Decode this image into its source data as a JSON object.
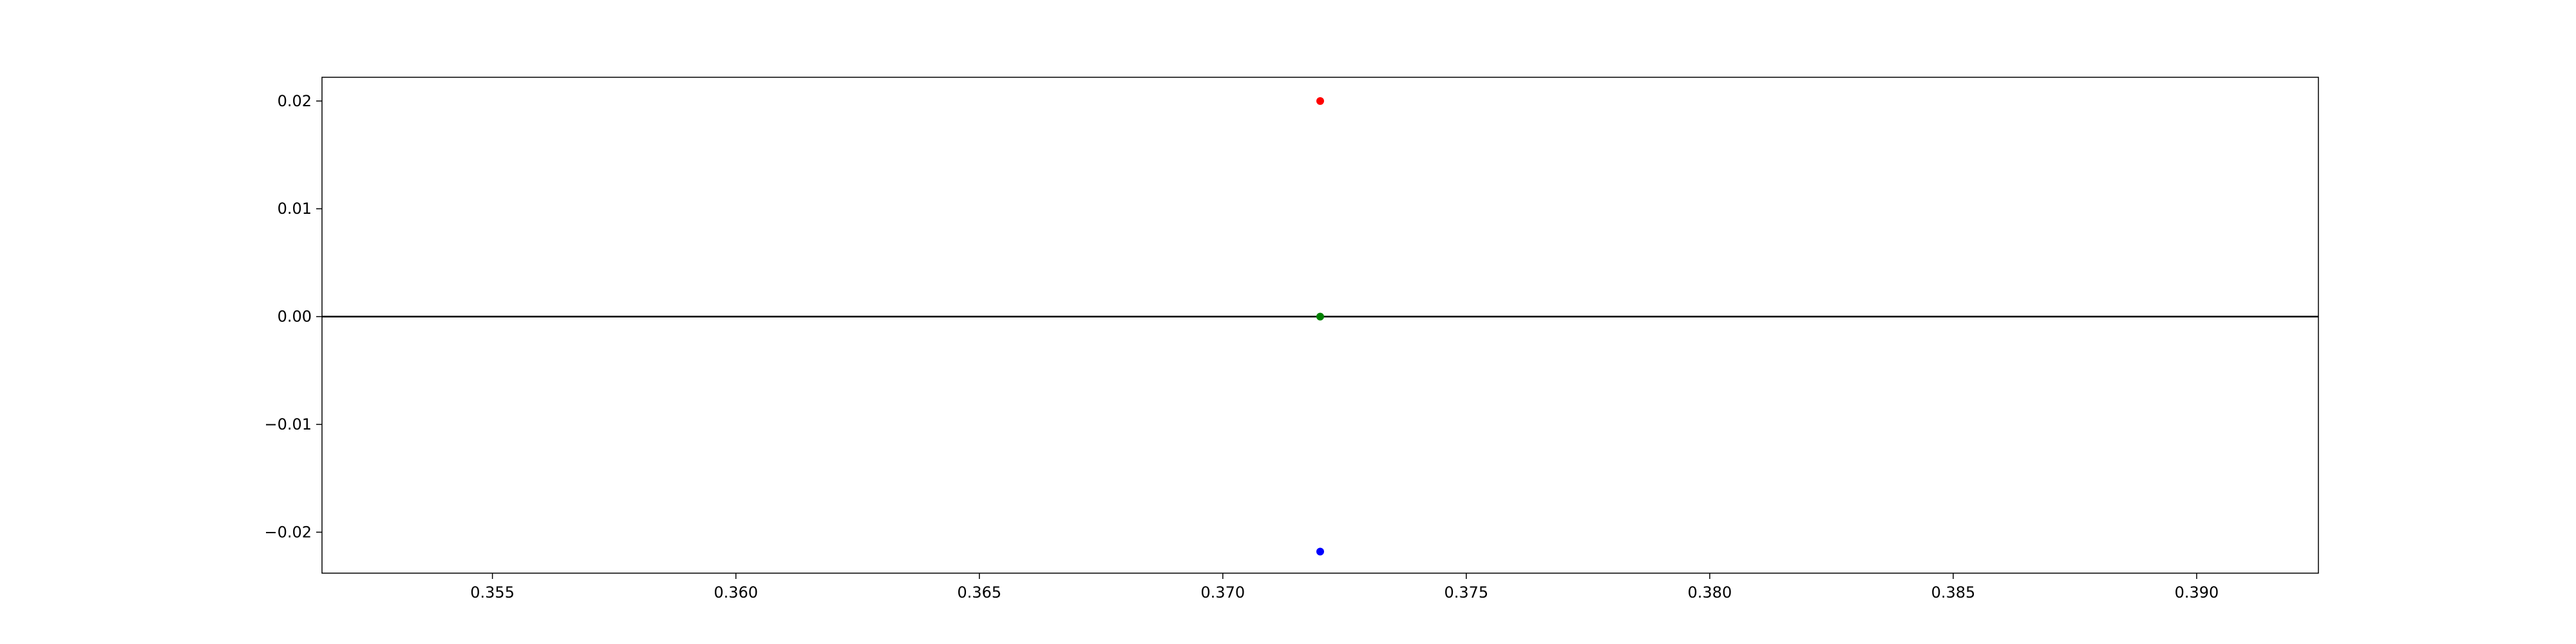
{
  "chart_data": {
    "type": "scatter",
    "title": "",
    "xlabel": "",
    "ylabel": "",
    "xlim": [
      0.3515,
      0.3925
    ],
    "ylim": [
      -0.0238,
      0.0222
    ],
    "x_ticks": [
      {
        "value": 0.355,
        "label": "0.355"
      },
      {
        "value": 0.36,
        "label": "0.360"
      },
      {
        "value": 0.365,
        "label": "0.365"
      },
      {
        "value": 0.37,
        "label": "0.370"
      },
      {
        "value": 0.375,
        "label": "0.375"
      },
      {
        "value": 0.38,
        "label": "0.380"
      },
      {
        "value": 0.385,
        "label": "0.385"
      },
      {
        "value": 0.39,
        "label": "0.390"
      }
    ],
    "y_ticks": [
      {
        "value": 0.02,
        "label": "0.02"
      },
      {
        "value": 0.01,
        "label": "0.01"
      },
      {
        "value": 0.0,
        "label": "0.00"
      },
      {
        "value": -0.01,
        "label": "−0.01"
      },
      {
        "value": -0.02,
        "label": "−0.02"
      }
    ],
    "reference_lines": [
      {
        "axis": "y",
        "value": 0.0,
        "color": "#000000"
      }
    ],
    "grid": false,
    "series": [
      {
        "color": "#ff0000",
        "points": [
          {
            "x": 0.372,
            "y": 0.02
          }
        ]
      },
      {
        "color": "#008000",
        "points": [
          {
            "x": 0.372,
            "y": 0.0
          }
        ]
      },
      {
        "color": "#0000ff",
        "points": [
          {
            "x": 0.372,
            "y": -0.0218
          }
        ]
      }
    ]
  }
}
